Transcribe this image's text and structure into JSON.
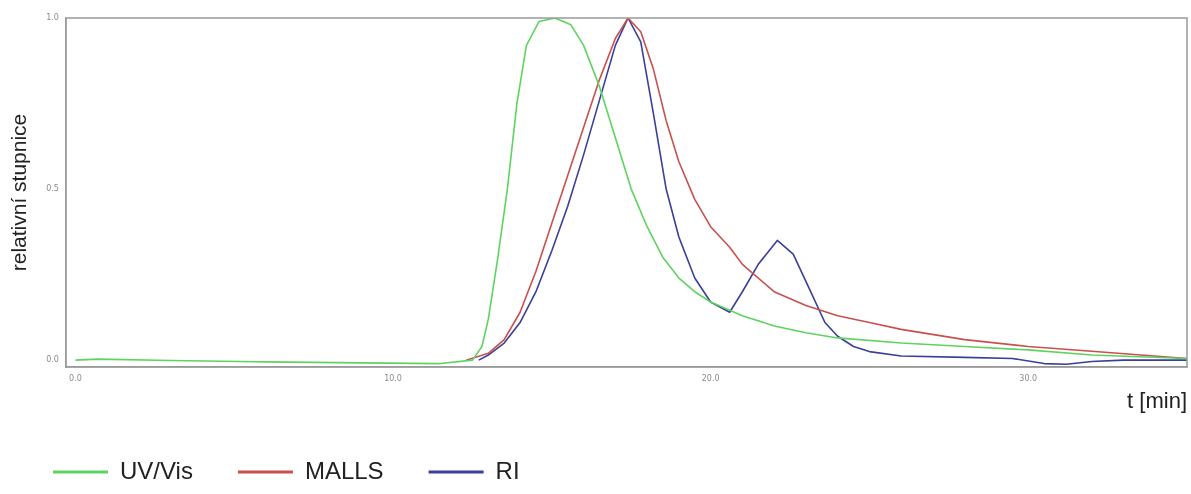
{
  "chart_data": {
    "type": "line",
    "xlabel": "t [min]",
    "ylabel": "relativní stupnice",
    "xlim": [
      -0.3,
      35.0
    ],
    "ylim": [
      -0.02,
      1.0
    ],
    "xticks": [
      {
        "value": 0,
        "label": "0.0"
      },
      {
        "value": 10,
        "label": "10.0"
      },
      {
        "value": 20,
        "label": "20.0"
      },
      {
        "value": 30,
        "label": "30.0"
      }
    ],
    "yticks": [
      {
        "value": 0,
        "label": "0.0"
      },
      {
        "value": 0.5,
        "label": "0.5"
      },
      {
        "value": 1,
        "label": "1.0"
      }
    ],
    "grid": false,
    "legend": "bottom",
    "marker": "none",
    "line_style": "solid",
    "series": [
      {
        "name": "UV/Vis",
        "color": "#5fd35f",
        "x": [
          0,
          0.7,
          3,
          6,
          9,
          11.5,
          12.5,
          12.8,
          13.0,
          13.3,
          13.6,
          13.9,
          14.2,
          14.6,
          15.1,
          15.6,
          16.0,
          16.5,
          17.0,
          17.5,
          18.0,
          18.5,
          19.0,
          19.5,
          20.0,
          21,
          22,
          23,
          24,
          26,
          28,
          30,
          32,
          35
        ],
        "values": [
          0,
          0.003,
          -0.001,
          -0.005,
          -0.008,
          -0.01,
          0,
          0.04,
          0.12,
          0.3,
          0.5,
          0.75,
          0.92,
          0.99,
          1.0,
          0.98,
          0.92,
          0.8,
          0.65,
          0.5,
          0.39,
          0.3,
          0.24,
          0.2,
          0.17,
          0.13,
          0.1,
          0.08,
          0.065,
          0.05,
          0.04,
          0.03,
          0.015,
          0.005
        ]
      },
      {
        "name": "MALLS",
        "color": "#c8504d",
        "x": [
          12.3,
          13.0,
          13.5,
          14.0,
          14.5,
          15.0,
          15.5,
          16.0,
          16.5,
          17.0,
          17.4,
          17.8,
          18.2,
          18.6,
          19.0,
          19.5,
          20.0,
          20.6,
          21,
          22,
          23,
          24,
          25,
          26,
          28,
          30,
          32,
          35
        ],
        "values": [
          0,
          0.02,
          0.06,
          0.14,
          0.26,
          0.4,
          0.54,
          0.68,
          0.82,
          0.94,
          1.0,
          0.96,
          0.85,
          0.7,
          0.58,
          0.47,
          0.39,
          0.33,
          0.28,
          0.2,
          0.16,
          0.13,
          0.11,
          0.09,
          0.06,
          0.04,
          0.026,
          0.005
        ]
      },
      {
        "name": "RI",
        "color": "#3a3f99",
        "x": [
          12.7,
          13.0,
          13.5,
          14,
          14.5,
          15.0,
          15.5,
          16,
          16.5,
          17,
          17.4,
          17.8,
          18.2,
          18.6,
          19,
          19.5,
          20,
          20.6,
          21,
          21.5,
          22.1,
          22.6,
          23,
          23.6,
          24,
          24.5,
          25,
          26,
          28,
          29.5,
          30.5,
          31.2,
          32,
          33,
          35
        ],
        "values": [
          0,
          0.015,
          0.05,
          0.11,
          0.2,
          0.32,
          0.45,
          0.6,
          0.76,
          0.92,
          1.0,
          0.93,
          0.72,
          0.5,
          0.36,
          0.24,
          0.17,
          0.14,
          0.2,
          0.28,
          0.35,
          0.31,
          0.23,
          0.11,
          0.07,
          0.04,
          0.025,
          0.012,
          0.008,
          0.005,
          -0.01,
          -0.012,
          -0.004,
          0,
          0
        ]
      }
    ]
  }
}
